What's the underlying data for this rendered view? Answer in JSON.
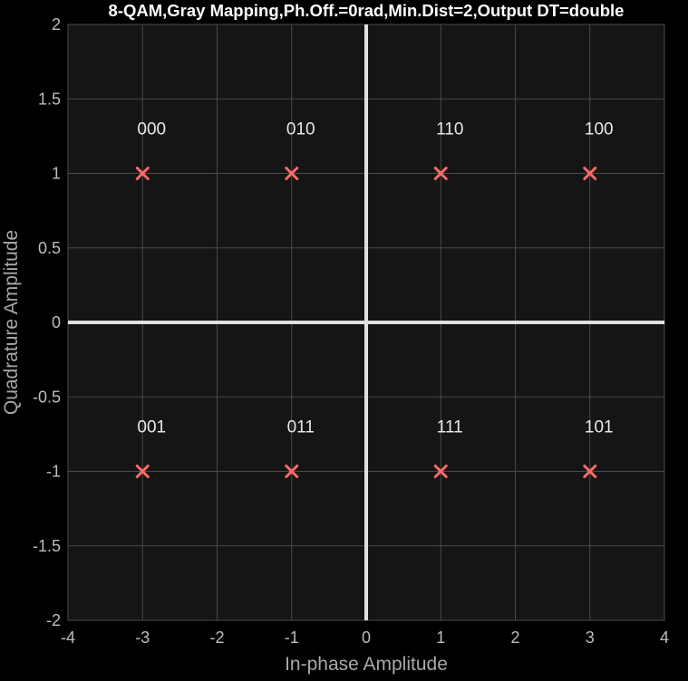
{
  "chart_data": {
    "type": "scatter",
    "title": "8-QAM,Gray Mapping,Ph.Off.=0rad,Min.Dist=2,Output DT=double",
    "xlabel": "In-phase Amplitude",
    "ylabel": "Quadrature Amplitude",
    "xlim": [
      -4,
      4
    ],
    "ylim": [
      -2,
      2
    ],
    "xticks": [
      -4,
      -3,
      -2,
      -1,
      0,
      1,
      2,
      3,
      4
    ],
    "xtick_labels": [
      "-4",
      "-3",
      "-2",
      "-1",
      "0",
      "1",
      "2",
      "3",
      "4"
    ],
    "yticks": [
      -2,
      -1.5,
      -1,
      -0.5,
      0,
      0.5,
      1,
      1.5,
      2
    ],
    "ytick_labels": [
      "-2",
      "-1.5",
      "-1",
      "-0.5",
      "0",
      "0.5",
      "1",
      "1.5",
      "2"
    ],
    "grid": true,
    "marker": "x",
    "points": [
      {
        "x": -3,
        "y": 1,
        "label": "000"
      },
      {
        "x": -1,
        "y": 1,
        "label": "010"
      },
      {
        "x": 1,
        "y": 1,
        "label": "110"
      },
      {
        "x": 3,
        "y": 1,
        "label": "100"
      },
      {
        "x": -3,
        "y": -1,
        "label": "001"
      },
      {
        "x": -1,
        "y": -1,
        "label": "011"
      },
      {
        "x": 1,
        "y": -1,
        "label": "111"
      },
      {
        "x": 3,
        "y": -1,
        "label": "101"
      }
    ]
  },
  "colors": {
    "background": "#000000",
    "plot_area": "#151515",
    "grid": "#4a4a4a",
    "axes_lines": "#e0e0e0",
    "marker": "#ff6b6b",
    "title_text": "#ffffff",
    "label_text": "#a8a8a8",
    "tick_text": "#bdbdbd",
    "point_label_text": "#e8e8e8"
  }
}
